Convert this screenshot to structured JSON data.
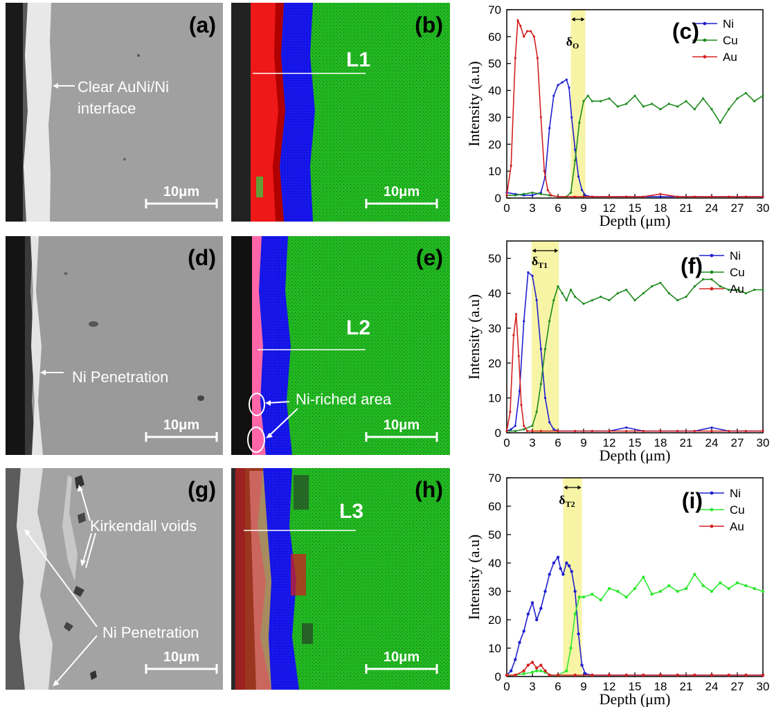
{
  "panels": [
    {
      "label": "(a)",
      "kind": "sem",
      "annotations": [
        "Clear AuNi/Ni",
        "interface"
      ],
      "scalebar": "10μm"
    },
    {
      "label": "(b)",
      "kind": "map",
      "line": "L1",
      "scalebar": "10μm"
    },
    {
      "label": "(d)",
      "kind": "sem",
      "annotations": [
        "Ni Penetration"
      ],
      "scalebar": "10μm"
    },
    {
      "label": "(e)",
      "kind": "map",
      "line": "L2",
      "annotations": [
        "Ni-riched area"
      ],
      "scalebar": "10μm"
    },
    {
      "label": "(g)",
      "kind": "sem",
      "annotations": [
        "Kirkendall voids",
        "Ni Penetration"
      ],
      "scalebar": "10μm"
    },
    {
      "label": "(h)",
      "kind": "map",
      "line": "L3",
      "scalebar": "10μm"
    }
  ],
  "colors": {
    "Ni": "#1f1fd0",
    "Cu": "#1e8a1e",
    "Cu_i": "#2ee82e",
    "Au": "#d42020",
    "band": "#f7f4a6",
    "map_green": "#22b822",
    "map_blue": "#1010e0",
    "map_red": "#ee1818"
  },
  "chart_data": [
    {
      "type": "line",
      "label": "(c)",
      "band_label": "δ",
      "band_sub": "O",
      "xlabel": "Depth (μm)",
      "ylabel": "Intensity (a.u)",
      "xlim": [
        0,
        30
      ],
      "ylim": [
        0,
        70
      ],
      "xticks": [
        0,
        3,
        6,
        9,
        12,
        15,
        18,
        21,
        24,
        27,
        30
      ],
      "yticks": [
        0,
        10,
        20,
        30,
        40,
        50,
        60,
        70
      ],
      "band": [
        7.5,
        9.2
      ],
      "legend": [
        "Ni",
        "Cu",
        "Au"
      ],
      "series": [
        {
          "name": "Ni",
          "x": [
            0,
            1,
            2,
            3,
            4,
            4.5,
            5,
            5.5,
            6,
            6.5,
            7,
            7.3,
            7.6,
            8,
            8.4,
            8.8,
            9.2,
            10,
            12,
            14,
            16,
            18,
            20,
            22,
            24,
            26,
            28,
            30
          ],
          "y": [
            2,
            1.5,
            1,
            1,
            2,
            8,
            26,
            38,
            42,
            43,
            44,
            41,
            30,
            18,
            8,
            3,
            1,
            0.5,
            0.5,
            0.5,
            0.5,
            0.5,
            0.5,
            0.5,
            0.5,
            0.5,
            0.5,
            0.5
          ]
        },
        {
          "name": "Cu",
          "x": [
            0,
            1,
            2,
            3,
            4,
            5,
            6,
            7,
            7.5,
            8,
            8.5,
            9,
            9.5,
            10,
            11,
            12,
            13,
            14,
            15,
            16,
            17,
            18,
            19,
            20,
            21,
            22,
            23,
            24,
            25,
            26,
            27,
            28,
            29,
            30
          ],
          "y": [
            1,
            1,
            1.5,
            2,
            1.5,
            1,
            0.5,
            0.5,
            2,
            14,
            28,
            36,
            38,
            36,
            36,
            37,
            34,
            35,
            38,
            34,
            35,
            33,
            35,
            34,
            36,
            33,
            37,
            33,
            28,
            33,
            37,
            39,
            36,
            38
          ]
        },
        {
          "name": "Au",
          "x": [
            0,
            0.5,
            1,
            1.3,
            1.6,
            2,
            2.4,
            2.8,
            3.2,
            3.6,
            4,
            4.4,
            4.8,
            5.2,
            6,
            8,
            10,
            12,
            14,
            16,
            18,
            20,
            22,
            24,
            26,
            28,
            30
          ],
          "y": [
            1,
            12,
            52,
            66,
            64,
            60,
            62,
            62,
            60,
            52,
            30,
            10,
            3,
            1,
            0.5,
            0.5,
            0.5,
            0.5,
            0.5,
            0.5,
            1.5,
            0.5,
            0.5,
            0.5,
            0.5,
            0.5,
            0.5
          ]
        }
      ]
    },
    {
      "type": "line",
      "label": "(f)",
      "band_label": "δ",
      "band_sub": "T1",
      "xlabel": "Depth (μm)",
      "ylabel": "Intensity (a.u)",
      "xlim": [
        0,
        30
      ],
      "ylim": [
        0,
        55
      ],
      "xticks": [
        0,
        3,
        6,
        9,
        12,
        15,
        18,
        21,
        24,
        27,
        30
      ],
      "yticks": [
        0,
        10,
        20,
        30,
        40,
        50
      ],
      "band": [
        2.9,
        6.1
      ],
      "legend": [
        "Ni",
        "Cu",
        "Au"
      ],
      "series": [
        {
          "name": "Ni",
          "x": [
            0,
            0.5,
            1,
            1.5,
            2,
            2.5,
            3,
            3.5,
            4,
            4.5,
            5,
            5.5,
            6,
            8,
            10,
            12,
            14,
            16,
            18,
            20,
            22,
            24,
            26,
            28,
            30
          ],
          "y": [
            0.5,
            1,
            2,
            12,
            32,
            46,
            45,
            38,
            24,
            10,
            3,
            1,
            0.5,
            0.5,
            0.5,
            0.5,
            1.5,
            0.5,
            0.5,
            0.5,
            0.5,
            1.5,
            0.5,
            0.5,
            0.5
          ]
        },
        {
          "name": "Cu",
          "x": [
            0,
            1,
            2,
            3,
            3.5,
            4,
            4.5,
            5,
            5.5,
            6,
            6.5,
            7,
            7.5,
            8,
            9,
            10,
            11,
            12,
            13,
            14,
            15,
            16,
            17,
            18,
            19,
            20,
            21,
            22,
            23,
            24,
            25,
            26,
            27,
            28,
            29,
            30
          ],
          "y": [
            0.5,
            0.5,
            1,
            2,
            6,
            14,
            24,
            32,
            38,
            42,
            40,
            38,
            41,
            39,
            37,
            38,
            39,
            38,
            40,
            41,
            38,
            40,
            42,
            43,
            40,
            38,
            39,
            42,
            44,
            44,
            42,
            41,
            41,
            40,
            41,
            41
          ]
        },
        {
          "name": "Au",
          "x": [
            0,
            0.4,
            0.8,
            1.1,
            1.4,
            1.7,
            2,
            2.4,
            3,
            4,
            6,
            8,
            10,
            12,
            14,
            16,
            18,
            20,
            22,
            24,
            26,
            28,
            30
          ],
          "y": [
            0.5,
            6,
            28,
            34,
            22,
            8,
            2,
            0.5,
            0.5,
            0.5,
            0.5,
            0.5,
            0.5,
            0.5,
            0.5,
            0.5,
            0.5,
            0.5,
            0.5,
            0.5,
            0.5,
            0.5,
            0.5
          ]
        }
      ]
    },
    {
      "type": "line",
      "label": "(i)",
      "band_label": "δ",
      "band_sub": "T2",
      "xlabel": "Depth (μm)",
      "ylabel": "Intensity (a.u)",
      "xlim": [
        0,
        30
      ],
      "ylim": [
        0,
        70
      ],
      "xticks": [
        0,
        3,
        6,
        9,
        12,
        15,
        18,
        21,
        24,
        27,
        30
      ],
      "yticks": [
        0,
        10,
        20,
        30,
        40,
        50,
        60,
        70
      ],
      "band": [
        6.6,
        8.8
      ],
      "legend": [
        "Ni",
        "Cu",
        "Au"
      ],
      "series": [
        {
          "name": "Ni",
          "x": [
            0,
            0.5,
            1,
            1.5,
            2,
            2.5,
            3,
            3.5,
            4,
            4.5,
            5,
            5.5,
            6,
            6.3,
            6.6,
            7,
            7.3,
            7.6,
            8,
            8.4,
            8.8,
            9.2,
            10,
            12,
            14,
            16,
            18,
            20,
            22,
            24,
            26,
            28,
            30
          ],
          "y": [
            0.5,
            2,
            6,
            12,
            16,
            22,
            26,
            20,
            24,
            30,
            36,
            40,
            42,
            38,
            36,
            40,
            39,
            37,
            30,
            15,
            4,
            1,
            0.5,
            0.5,
            0.5,
            0.5,
            0.5,
            0.5,
            0.5,
            0.5,
            0.5,
            0.5,
            0.5
          ]
        },
        {
          "name": "Cu",
          "x": [
            0,
            1,
            2,
            3,
            3.5,
            4,
            4.5,
            5,
            6,
            7,
            7.5,
            8,
            8.5,
            9,
            10,
            11,
            12,
            13,
            14,
            15,
            16,
            17,
            18,
            19,
            20,
            21,
            22,
            23,
            24,
            25,
            26,
            27,
            28,
            29,
            30
          ],
          "y": [
            0.5,
            0.5,
            1,
            1.5,
            2,
            2,
            1.5,
            0.5,
            0.5,
            2,
            10,
            22,
            28,
            28,
            29,
            27,
            31,
            30,
            28,
            31,
            35,
            29,
            30,
            32,
            30,
            31,
            36,
            32,
            30,
            33,
            31,
            33,
            32,
            31,
            30
          ]
        },
        {
          "name": "Au",
          "x": [
            0,
            1,
            2,
            2.5,
            3,
            3.5,
            4,
            4.5,
            5,
            6,
            8,
            10,
            12,
            14,
            16,
            18,
            20,
            22,
            24,
            26,
            28,
            30
          ],
          "y": [
            0.5,
            0.5,
            2,
            4,
            5,
            3,
            4,
            2,
            0.5,
            0.5,
            0.5,
            0.5,
            0.5,
            0.5,
            0.5,
            0.5,
            0.5,
            0.5,
            0.5,
            0.5,
            0.5,
            0.5
          ]
        }
      ]
    }
  ]
}
